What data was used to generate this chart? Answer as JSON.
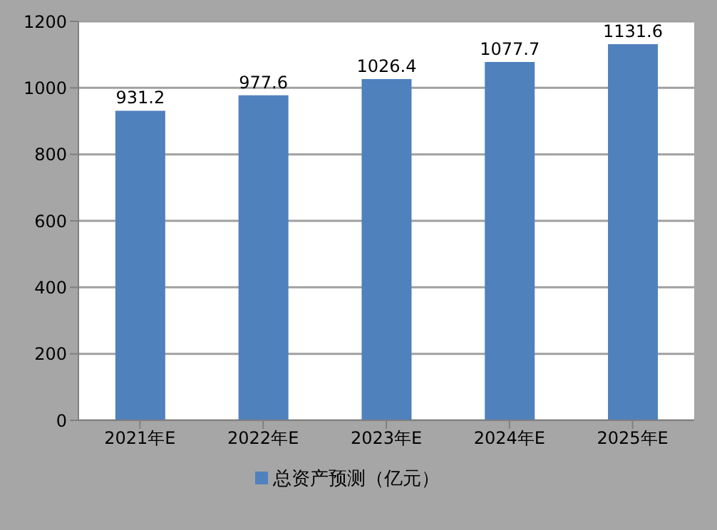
{
  "chart_data": {
    "type": "bar",
    "categories": [
      "2021年E",
      "2022年E",
      "2023年E",
      "2024年E",
      "2025年E"
    ],
    "series": [
      {
        "name": "总资产预测（亿元）",
        "color": "#4f81bd",
        "values": [
          931.2,
          977.6,
          1026.4,
          1077.7,
          1131.6
        ]
      }
    ],
    "ylim": [
      0,
      1200
    ],
    "yticks": [
      0,
      200,
      400,
      600,
      800,
      1000,
      1200
    ],
    "grid": "y",
    "legend": "bottom",
    "data_labels": true
  }
}
